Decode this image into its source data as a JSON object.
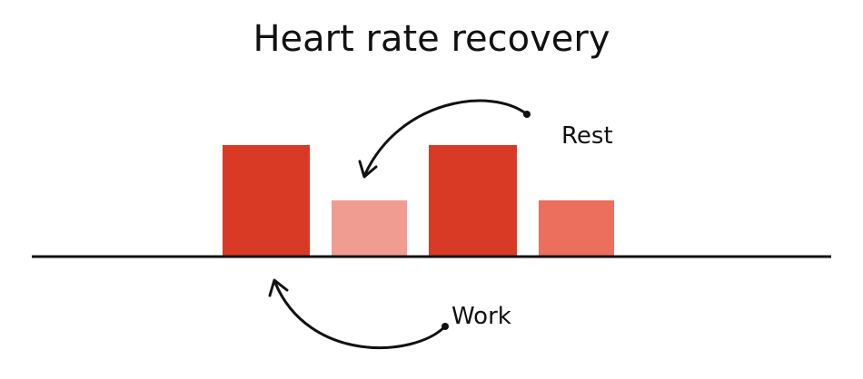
{
  "header": {
    "title": "Heart rate recovery"
  },
  "labels": {
    "rest": "Rest",
    "work": "Work"
  }
}
